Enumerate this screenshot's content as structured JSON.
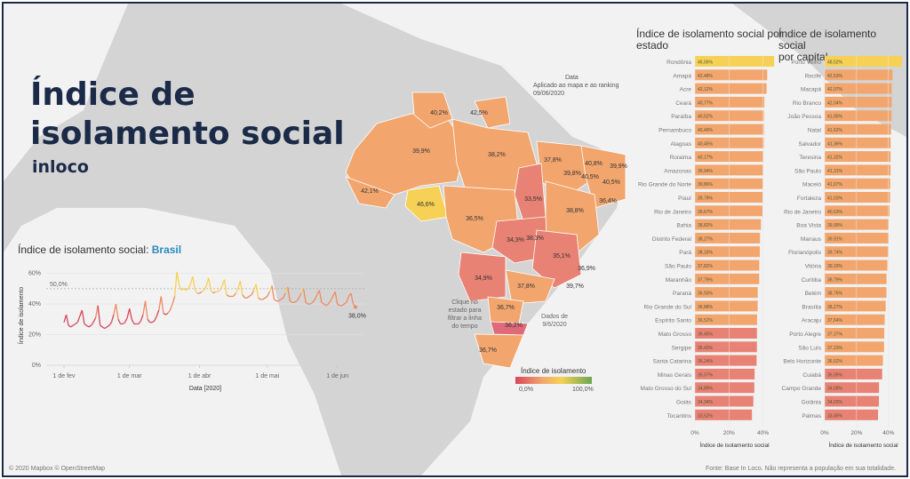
{
  "header": {
    "title_line1": "Índice de",
    "title_line2": "isolamento social",
    "brand": "inloco"
  },
  "map": {
    "date_label": "Data",
    "date_note": "Aplicado ao mapa e ao ranking",
    "date_value": "09/06/2020",
    "click_hint": "Clique no estado para filtrar a linha do tempo",
    "click_hint_lines": [
      "Clique no",
      "estado para",
      "filtrar a linha",
      "do tempo"
    ],
    "data_note_lines": [
      "Dados de",
      "9/6/2020"
    ],
    "legend_title": "Índice de isolamento",
    "legend_min": "0,0%",
    "legend_max": "100,0%",
    "state_labels": [
      "40,2%",
      "42,5%",
      "39,9%",
      "38,2%",
      "37,8%",
      "40,8%",
      "39,9%",
      "40,5%",
      "39,8%",
      "40,5%",
      "36,4%",
      "42,1%",
      "46,6%",
      "36,5%",
      "33,5%",
      "38,8%",
      "34,3%",
      "38,3%",
      "35,1%",
      "34,9%",
      "36,9%",
      "39,7%",
      "37,8%",
      "36,7%",
      "36,2%",
      "36,7%"
    ],
    "colors": {
      "bright": "#f6d155",
      "mid": "#f2a66e",
      "low": "#e88274",
      "lowest": "#e0697a",
      "land": "#d4d4d4",
      "water": "#f2f2f2"
    }
  },
  "footer": {
    "attribution": "© 2020 Mapbox © OpenStreetMap",
    "source": "Fonte: Base In Loco. Não representa a população em sua totalidade."
  },
  "chart_data": [
    {
      "type": "line",
      "title_prefix": "Índice de isolamento social: ",
      "title_highlight": "Brasil",
      "xlabel": "Data [2020]",
      "ylabel": "Índice de isolamento",
      "x_ticks": [
        "1 de fev",
        "1 de mar",
        "1 de abr",
        "1 de mai",
        "1 de jun"
      ],
      "y_ticks": [
        "0%",
        "20%",
        "40%",
        "60%"
      ],
      "ylim": [
        0,
        65
      ],
      "reference_line": {
        "value": 50,
        "label": "50,0%"
      },
      "end_label": "38,0%",
      "x": [
        "2020-02-01",
        "2020-02-02",
        "2020-02-03",
        "2020-02-04",
        "2020-02-05",
        "2020-02-06",
        "2020-02-07",
        "2020-02-08",
        "2020-02-09",
        "2020-02-10",
        "2020-02-11",
        "2020-02-12",
        "2020-02-13",
        "2020-02-14",
        "2020-02-15",
        "2020-02-16",
        "2020-02-17",
        "2020-02-18",
        "2020-02-19",
        "2020-02-20",
        "2020-02-21",
        "2020-02-22",
        "2020-02-23",
        "2020-02-24",
        "2020-02-25",
        "2020-02-26",
        "2020-02-27",
        "2020-02-28",
        "2020-02-29",
        "2020-03-01",
        "2020-03-02",
        "2020-03-03",
        "2020-03-04",
        "2020-03-05",
        "2020-03-06",
        "2020-03-07",
        "2020-03-08",
        "2020-03-09",
        "2020-03-10",
        "2020-03-11",
        "2020-03-12",
        "2020-03-13",
        "2020-03-14",
        "2020-03-15",
        "2020-03-16",
        "2020-03-17",
        "2020-03-18",
        "2020-03-19",
        "2020-03-20",
        "2020-03-21",
        "2020-03-22",
        "2020-03-23",
        "2020-03-24",
        "2020-03-25",
        "2020-03-26",
        "2020-03-27",
        "2020-03-28",
        "2020-03-29",
        "2020-03-30",
        "2020-03-31",
        "2020-04-01",
        "2020-04-02",
        "2020-04-03",
        "2020-04-04",
        "2020-04-05",
        "2020-04-06",
        "2020-04-07",
        "2020-04-08",
        "2020-04-09",
        "2020-04-10",
        "2020-04-11",
        "2020-04-12",
        "2020-04-13",
        "2020-04-14",
        "2020-04-15",
        "2020-04-16",
        "2020-04-17",
        "2020-04-18",
        "2020-04-19",
        "2020-04-20",
        "2020-04-21",
        "2020-04-22",
        "2020-04-23",
        "2020-04-24",
        "2020-04-25",
        "2020-04-26",
        "2020-04-27",
        "2020-04-28",
        "2020-04-29",
        "2020-04-30",
        "2020-05-01",
        "2020-05-02",
        "2020-05-03",
        "2020-05-04",
        "2020-05-05",
        "2020-05-06",
        "2020-05-07",
        "2020-05-08",
        "2020-05-09",
        "2020-05-10",
        "2020-05-11",
        "2020-05-12",
        "2020-05-13",
        "2020-05-14",
        "2020-05-15",
        "2020-05-16",
        "2020-05-17",
        "2020-05-18",
        "2020-05-19",
        "2020-05-20",
        "2020-05-21",
        "2020-05-22",
        "2020-05-23",
        "2020-05-24",
        "2020-05-25",
        "2020-05-26",
        "2020-05-27",
        "2020-05-28",
        "2020-05-29",
        "2020-05-30",
        "2020-05-31",
        "2020-06-01",
        "2020-06-02",
        "2020-06-03",
        "2020-06-04",
        "2020-06-05",
        "2020-06-06",
        "2020-06-07",
        "2020-06-08",
        "2020-06-09"
      ],
      "values": [
        28,
        33,
        26,
        25,
        26,
        27,
        28,
        32,
        36,
        27,
        26,
        25,
        26,
        28,
        31,
        39,
        26,
        25,
        24,
        25,
        26,
        28,
        33,
        40,
        30,
        27,
        27,
        28,
        31,
        37,
        30,
        27,
        27,
        27,
        29,
        33,
        42,
        30,
        28,
        28,
        29,
        32,
        36,
        45,
        34,
        33,
        34,
        36,
        40,
        45,
        61,
        52,
        49,
        50,
        49,
        50,
        53,
        58,
        49,
        47,
        47,
        48,
        49,
        52,
        57,
        49,
        47,
        48,
        48,
        49,
        52,
        56,
        46,
        45,
        45,
        45,
        47,
        50,
        55,
        46,
        44,
        44,
        45,
        46,
        49,
        53,
        44,
        43,
        43,
        44,
        45,
        48,
        52,
        43,
        42,
        42,
        43,
        44,
        47,
        51,
        42,
        41,
        41,
        42,
        44,
        47,
        50,
        41,
        40,
        40,
        41,
        43,
        46,
        49,
        41,
        40,
        39,
        40,
        42,
        45,
        48,
        40,
        39,
        39,
        40,
        41,
        45,
        47,
        40,
        38
      ],
      "line_colors": {
        "low": "#d6475c",
        "mid": "#ef8a62",
        "high": "#f6d155"
      }
    },
    {
      "type": "bar",
      "orientation": "horizontal",
      "title": "Índice de isolamento social por estado",
      "title_lines": [
        "Índice de isolamento social por",
        "estado"
      ],
      "xlabel": "Índice de isolamento social",
      "x_ticks": [
        "0%",
        "20%",
        "40%"
      ],
      "xlim": [
        0,
        46.5
      ],
      "categories": [
        "Rondônia",
        "Amapá",
        "Acre",
        "Ceará",
        "Paraíba",
        "Pernambuco",
        "Alagoas",
        "Roraima",
        "Amazonas",
        "Rio Grande do Norte",
        "Piauí",
        "Rio de Janeiro",
        "Bahia",
        "Distrito Federal",
        "Pará",
        "São Paulo",
        "Maranhão",
        "Paraná",
        "Rio Grande do Sul",
        "Espírito Santo",
        "Mato Grosso",
        "Sergipe",
        "Santa Catarina",
        "Minas Gerais",
        "Mato Grosso do Sul",
        "Goiás",
        "Tocantins"
      ],
      "values": [
        46.56,
        42.48,
        42.12,
        40.77,
        40.52,
        40.49,
        40.45,
        40.17,
        39.94,
        39.86,
        39.79,
        39.67,
        38.82,
        38.27,
        38.16,
        37.82,
        37.79,
        36.93,
        36.88,
        36.52,
        36.45,
        36.43,
        36.24,
        35.07,
        34.89,
        34.34,
        33.52
      ],
      "value_labels": [
        "46,56%",
        "42,48%",
        "42,12%",
        "40,77%",
        "40,52%",
        "40,49%",
        "40,45%",
        "40,17%",
        "39,94%",
        "39,86%",
        "39,79%",
        "39,67%",
        "38,82%",
        "38,27%",
        "38,16%",
        "37,82%",
        "37,79%",
        "36,93%",
        "36,88%",
        "36,52%",
        "36,45%",
        "36,43%",
        "36,24%",
        "35,07%",
        "34,89%",
        "34,34%",
        "33,52%"
      ]
    },
    {
      "type": "bar",
      "orientation": "horizontal",
      "title": "Índice de isolamento social por capital",
      "title_lines": [
        "Índice de isolamento social",
        "por capital"
      ],
      "xlabel": "Índice de isolamento social",
      "x_ticks": [
        "0%",
        "20%",
        "40%"
      ],
      "xlim": [
        0,
        48.5
      ],
      "categories": [
        "Porto Velho",
        "Recife",
        "Macapá",
        "Rio Branco",
        "João Pessoa",
        "Natal",
        "Salvador",
        "Teresina",
        "São Paulo",
        "Maceió",
        "Fortaleza",
        "Rio de Janeiro",
        "Boa Vista",
        "Manaus",
        "Florianópolis",
        "Vitória",
        "Curitiba",
        "Belém",
        "Brasília",
        "Aracaju",
        "Porto Alegre",
        "São Luís",
        "Belo Horizonte",
        "Cuiabá",
        "Campo Grande",
        "Goiânia",
        "Palmas"
      ],
      "values": [
        48.52,
        42.53,
        42.07,
        42.04,
        41.95,
        41.62,
        41.36,
        41.32,
        41.31,
        41.07,
        41.03,
        40.63,
        39.99,
        39.91,
        39.74,
        39.33,
        38.79,
        38.76,
        38.27,
        37.64,
        37.37,
        37.23,
        36.52,
        36.05,
        34.08,
        34.03,
        33.45
      ],
      "value_labels": [
        "48,52%",
        "42,53%",
        "42,07%",
        "42,04%",
        "41,95%",
        "41,62%",
        "41,36%",
        "41,32%",
        "41,31%",
        "41,07%",
        "41,03%",
        "40,63%",
        "39,99%",
        "39,91%",
        "39,74%",
        "39,33%",
        "38,79%",
        "38,76%",
        "38,27%",
        "37,64%",
        "37,37%",
        "37,23%",
        "36,52%",
        "36,05%",
        "34,08%",
        "34,03%",
        "33,45%"
      ]
    }
  ]
}
